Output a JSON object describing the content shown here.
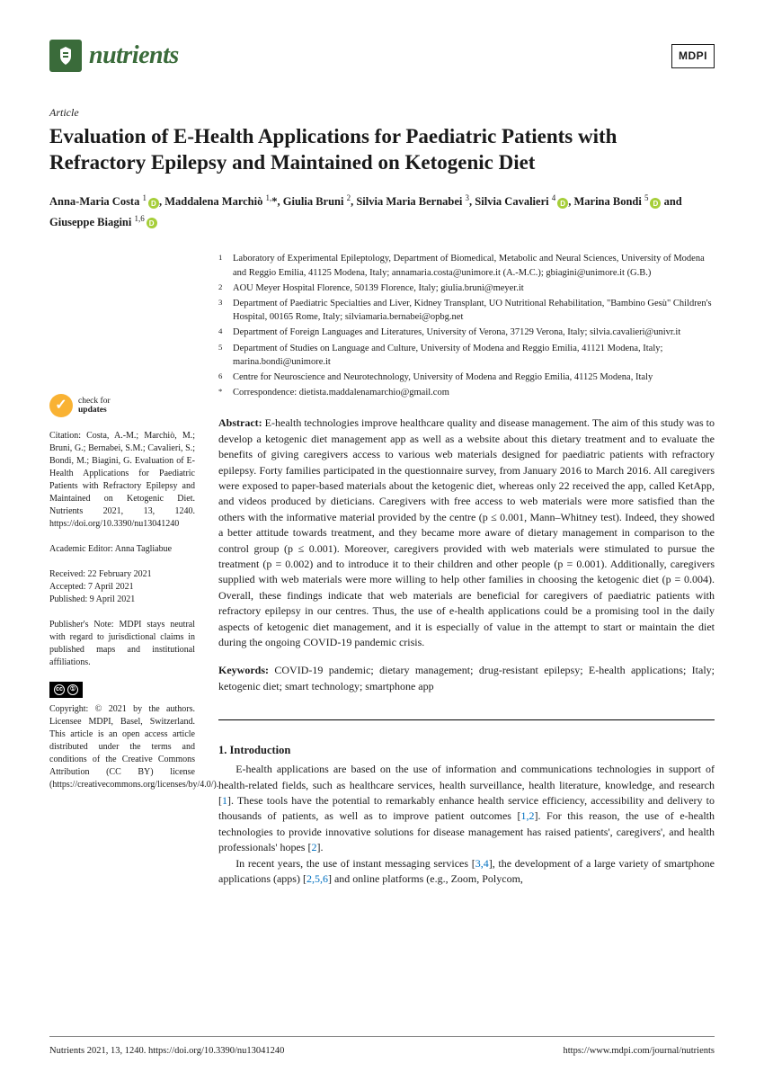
{
  "journal": {
    "name": "nutrients",
    "publisher": "MDPI",
    "logo_bg": "#3a6b3a"
  },
  "article_type": "Article",
  "title": "Evaluation of E-Health Applications for Paediatric Patients with Refractory Epilepsy and Maintained on Ketogenic Diet",
  "authors_html": "Anna-Maria Costa <sup>1</sup><span class='orcid'></span>, Maddalena Marchiò <sup>1,</sup>*, Giulia Bruni <sup>2</sup>, Silvia Maria Bernabei <sup>3</sup>, Silvia Cavalieri <sup>4</sup><span class='orcid'></span>, Marina Bondi <sup>5</sup><span class='orcid'></span> and Giuseppe Biagini <sup>1,6</sup><span class='orcid'></span>",
  "affiliations": [
    {
      "n": "1",
      "t": "Laboratory of Experimental Epileptology, Department of Biomedical, Metabolic and Neural Sciences, University of Modena and Reggio Emilia, 41125 Modena, Italy; annamaria.costa@unimore.it (A.-M.C.); gbiagini@unimore.it (G.B.)"
    },
    {
      "n": "2",
      "t": "AOU Meyer Hospital Florence, 50139 Florence, Italy; giulia.bruni@meyer.it"
    },
    {
      "n": "3",
      "t": "Department of Paediatric Specialties and Liver, Kidney Transplant, UO Nutritional Rehabilitation, \"Bambino Gesù\" Children's Hospital, 00165 Rome, Italy; silviamaria.bernabei@opbg.net"
    },
    {
      "n": "4",
      "t": "Department of Foreign Languages and Literatures, University of Verona, 37129 Verona, Italy; silvia.cavalieri@univr.it"
    },
    {
      "n": "5",
      "t": "Department of Studies on Language and Culture, University of Modena and Reggio Emilia, 41121 Modena, Italy; marina.bondi@unimore.it"
    },
    {
      "n": "6",
      "t": "Centre for Neuroscience and Neurotechnology, University of Modena and Reggio Emilia, 41125 Modena, Italy"
    },
    {
      "n": "*",
      "t": "Correspondence: dietista.maddalenamarchio@gmail.com"
    }
  ],
  "abstract_label": "Abstract:",
  "abstract": " E-health technologies improve healthcare quality and disease management. The aim of this study was to develop a ketogenic diet management app as well as a website about this dietary treatment and to evaluate the benefits of giving caregivers access to various web materials designed for paediatric patients with refractory epilepsy. Forty families participated in the questionnaire survey, from January 2016 to March 2016. All caregivers were exposed to paper-based materials about the ketogenic diet, whereas only 22 received the app, called KetApp, and videos produced by dieticians. Caregivers with free access to web materials were more satisfied than the others with the informative material provided by the centre (p ≤ 0.001, Mann–Whitney test). Indeed, they showed a better attitude towards treatment, and they became more aware of dietary management in comparison to the control group (p ≤ 0.001). Moreover, caregivers provided with web materials were stimulated to pursue the treatment (p = 0.002) and to introduce it to their children and other people (p = 0.001). Additionally, caregivers supplied with web materials were more willing to help other families in choosing the ketogenic diet (p = 0.004). Overall, these findings indicate that web materials are beneficial for caregivers of paediatric patients with refractory epilepsy in our centres. Thus, the use of e-health applications could be a promising tool in the daily aspects of ketogenic diet management, and it is especially of value in the attempt to start or maintain the diet during the ongoing COVID-19 pandemic crisis.",
  "keywords_label": "Keywords:",
  "keywords": " COVID-19 pandemic; dietary management; drug-resistant epilepsy; E-health applications; Italy; ketogenic diet; smart technology; smartphone app",
  "section1_heading": "1. Introduction",
  "intro_p1": "E-health applications are based on the use of information and communications technologies in support of health-related fields, such as healthcare services, health surveillance, health literature, knowledge, and research [1]. These tools have the potential to remarkably enhance health service efficiency, accessibility and delivery to thousands of patients, as well as to improve patient outcomes [1,2]. For this reason, the use of e-health technologies to provide innovative solutions for disease management has raised patients', caregivers', and health professionals' hopes [2].",
  "intro_p2": "In recent years, the use of instant messaging services [3,4], the development of a large variety of smartphone applications (apps) [2,5,6] and online platforms (e.g., Zoom, Polycom,",
  "sidebar": {
    "check_label1": "check for",
    "check_label2": "updates",
    "citation": "Citation: Costa, A.-M.; Marchiò, M.; Bruni, G.; Bernabei, S.M.; Cavalieri, S.; Bondi, M.; Biagini, G. Evaluation of E-Health Applications for Paediatric Patients with Refractory Epilepsy and Maintained on Ketogenic Diet. Nutrients 2021, 13, 1240. https://doi.org/10.3390/nu13041240",
    "editor": "Academic Editor: Anna Tagliabue",
    "received": "Received: 22 February 2021",
    "accepted": "Accepted: 7 April 2021",
    "published": "Published: 9 April 2021",
    "note": "Publisher's Note: MDPI stays neutral with regard to jurisdictional claims in published maps and institutional affiliations.",
    "copyright": "Copyright: © 2021 by the authors. Licensee MDPI, Basel, Switzerland. This article is an open access article distributed under the terms and conditions of the Creative Commons Attribution (CC BY) license (https://creativecommons.org/licenses/by/4.0/)."
  },
  "footer": {
    "left": "Nutrients 2021, 13, 1240. https://doi.org/10.3390/nu13041240",
    "right": "https://www.mdpi.com/journal/nutrients"
  },
  "colors": {
    "journal_green": "#3a6b3a",
    "orcid_green": "#a6ce39",
    "link_blue": "#0070c0",
    "check_orange": "#f9b233"
  }
}
